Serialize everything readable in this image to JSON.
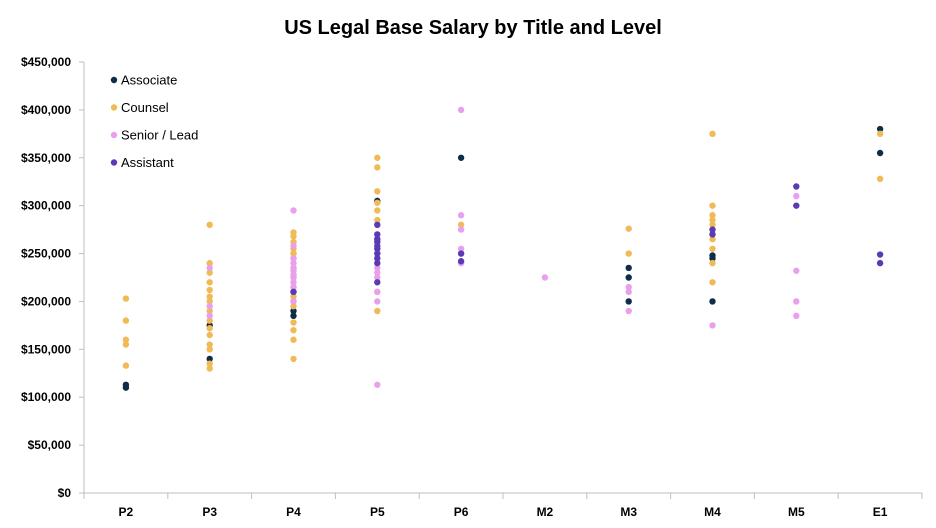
{
  "chart_data": {
    "type": "scatter",
    "title": "US Legal Base Salary by Title and Level",
    "xlabel": "",
    "ylabel": "",
    "categories": [
      "P2",
      "P3",
      "P4",
      "P5",
      "P6",
      "M2",
      "M3",
      "M4",
      "M5",
      "E1"
    ],
    "ylim": [
      0,
      450000
    ],
    "yticks": [
      0,
      50000,
      100000,
      150000,
      200000,
      250000,
      300000,
      350000,
      400000,
      450000
    ],
    "ytick_labels": [
      "$0",
      "$50,000",
      "$100,000",
      "$150,000",
      "$200,000",
      "$250,000",
      "$300,000",
      "$350,000",
      "$400,000",
      "$450,000"
    ],
    "grid": false,
    "legend_position": "top-left",
    "series": [
      {
        "name": "Associate",
        "color": "#0f2d4a",
        "points": [
          [
            "P2",
            110000
          ],
          [
            "P2",
            113000
          ],
          [
            "P3",
            140000
          ],
          [
            "P3",
            175000
          ],
          [
            "P4",
            185000
          ],
          [
            "P4",
            190000
          ],
          [
            "P4",
            210000
          ],
          [
            "P5",
            305000
          ],
          [
            "P6",
            350000
          ],
          [
            "M3",
            200000
          ],
          [
            "M3",
            225000
          ],
          [
            "M3",
            235000
          ],
          [
            "M4",
            200000
          ],
          [
            "M4",
            245000
          ],
          [
            "M4",
            248000
          ],
          [
            "E1",
            355000
          ],
          [
            "E1",
            380000
          ]
        ]
      },
      {
        "name": "Counsel",
        "color": "#f0bb57",
        "points": [
          [
            "P2",
            133000
          ],
          [
            "P2",
            155000
          ],
          [
            "P2",
            160000
          ],
          [
            "P2",
            180000
          ],
          [
            "P2",
            203000
          ],
          [
            "P3",
            130000
          ],
          [
            "P3",
            135000
          ],
          [
            "P3",
            150000
          ],
          [
            "P3",
            155000
          ],
          [
            "P3",
            165000
          ],
          [
            "P3",
            172000
          ],
          [
            "P3",
            180000
          ],
          [
            "P3",
            190000
          ],
          [
            "P3",
            200000
          ],
          [
            "P3",
            205000
          ],
          [
            "P3",
            212000
          ],
          [
            "P3",
            220000
          ],
          [
            "P3",
            230000
          ],
          [
            "P3",
            240000
          ],
          [
            "P3",
            280000
          ],
          [
            "P4",
            140000
          ],
          [
            "P4",
            160000
          ],
          [
            "P4",
            170000
          ],
          [
            "P4",
            178000
          ],
          [
            "P4",
            195000
          ],
          [
            "P4",
            200000
          ],
          [
            "P4",
            205000
          ],
          [
            "P4",
            215000
          ],
          [
            "P4",
            225000
          ],
          [
            "P4",
            235000
          ],
          [
            "P4",
            245000
          ],
          [
            "P4",
            250000
          ],
          [
            "P4",
            255000
          ],
          [
            "P4",
            262000
          ],
          [
            "P4",
            268000
          ],
          [
            "P4",
            272000
          ],
          [
            "P5",
            190000
          ],
          [
            "P5",
            210000
          ],
          [
            "P5",
            285000
          ],
          [
            "P5",
            295000
          ],
          [
            "P5",
            303000
          ],
          [
            "P5",
            315000
          ],
          [
            "P5",
            340000
          ],
          [
            "P5",
            350000
          ],
          [
            "P6",
            280000
          ],
          [
            "M3",
            250000
          ],
          [
            "M3",
            276000
          ],
          [
            "M4",
            220000
          ],
          [
            "M4",
            240000
          ],
          [
            "M4",
            255000
          ],
          [
            "M4",
            265000
          ],
          [
            "M4",
            270000
          ],
          [
            "M4",
            280000
          ],
          [
            "M4",
            285000
          ],
          [
            "M4",
            290000
          ],
          [
            "M4",
            300000
          ],
          [
            "M4",
            375000
          ],
          [
            "E1",
            328000
          ],
          [
            "E1",
            375000
          ]
        ]
      },
      {
        "name": "Senior / Lead",
        "color": "#e8a0ee",
        "points": [
          [
            "P3",
            185000
          ],
          [
            "P3",
            195000
          ],
          [
            "P3",
            235000
          ],
          [
            "P4",
            200000
          ],
          [
            "P4",
            210000
          ],
          [
            "P4",
            215000
          ],
          [
            "P4",
            220000
          ],
          [
            "P4",
            225000
          ],
          [
            "P4",
            228000
          ],
          [
            "P4",
            232000
          ],
          [
            "P4",
            235000
          ],
          [
            "P4",
            240000
          ],
          [
            "P4",
            245000
          ],
          [
            "P4",
            258000
          ],
          [
            "P4",
            295000
          ],
          [
            "P5",
            113000
          ],
          [
            "P5",
            200000
          ],
          [
            "P5",
            210000
          ],
          [
            "P5",
            225000
          ],
          [
            "P5",
            230000
          ],
          [
            "P5",
            235000
          ],
          [
            "P5",
            245000
          ],
          [
            "P5",
            255000
          ],
          [
            "P5",
            265000
          ],
          [
            "P5",
            270000
          ],
          [
            "P6",
            240000
          ],
          [
            "P6",
            255000
          ],
          [
            "P6",
            275000
          ],
          [
            "P6",
            290000
          ],
          [
            "P6",
            400000
          ],
          [
            "M2",
            225000
          ],
          [
            "M3",
            190000
          ],
          [
            "M3",
            210000
          ],
          [
            "M3",
            215000
          ],
          [
            "M4",
            175000
          ],
          [
            "M5",
            185000
          ],
          [
            "M5",
            200000
          ],
          [
            "M5",
            232000
          ],
          [
            "M5",
            310000
          ]
        ]
      },
      {
        "name": "Assistant",
        "color": "#5a3ab5",
        "points": [
          [
            "P4",
            210000
          ],
          [
            "P5",
            220000
          ],
          [
            "P5",
            240000
          ],
          [
            "P5",
            245000
          ],
          [
            "P5",
            250000
          ],
          [
            "P5",
            255000
          ],
          [
            "P5",
            258000
          ],
          [
            "P5",
            262000
          ],
          [
            "P5",
            265000
          ],
          [
            "P5",
            270000
          ],
          [
            "P5",
            280000
          ],
          [
            "P6",
            242000
          ],
          [
            "P6",
            250000
          ],
          [
            "M4",
            270000
          ],
          [
            "M4",
            275000
          ],
          [
            "M5",
            300000
          ],
          [
            "M5",
            320000
          ],
          [
            "E1",
            240000
          ],
          [
            "E1",
            249000
          ]
        ]
      }
    ]
  }
}
